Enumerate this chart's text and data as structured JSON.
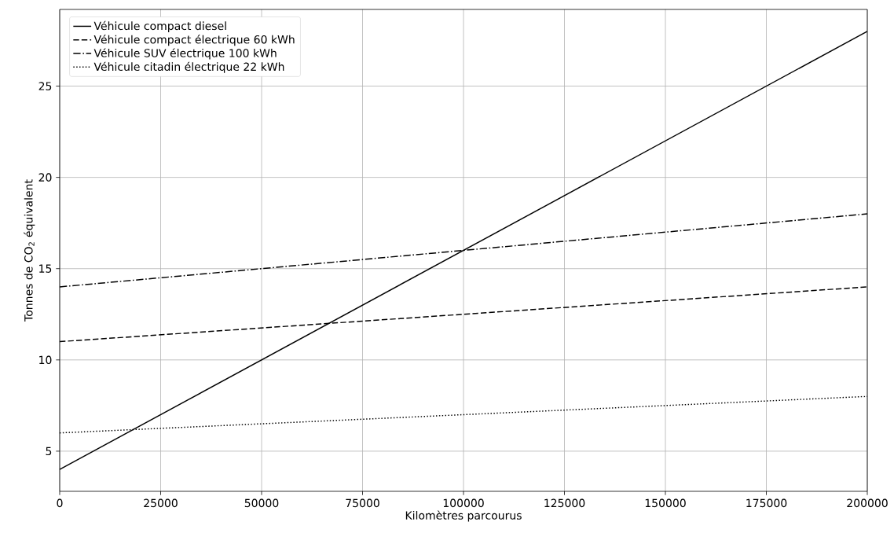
{
  "chart_data": {
    "type": "line",
    "xlabel": "Kilomètres parcourus",
    "ylabel": "Tonnes de CO$_{2}$ équivalent",
    "x": [
      0,
      200000
    ],
    "series": [
      {
        "name": "Véhicule compact diesel",
        "color": "#000000",
        "line_style": "solid",
        "values": [
          4,
          28
        ]
      },
      {
        "name": "Véhicule compact électrique 60 kWh",
        "color": "#000000",
        "line_style": "dashed",
        "values": [
          11,
          14
        ]
      },
      {
        "name": "Véhicule SUV électrique 100 kWh",
        "color": "#000000",
        "line_style": "dashdot",
        "values": [
          14,
          18
        ]
      },
      {
        "name": "Véhicule citadin électrique 22 kWh",
        "color": "#000000",
        "line_style": "dotted",
        "values": [
          6,
          8
        ]
      }
    ],
    "xlim": [
      0,
      200000
    ],
    "ylim": [
      2.8,
      29.2
    ],
    "xticks": [
      0,
      25000,
      50000,
      75000,
      100000,
      125000,
      150000,
      175000,
      200000
    ],
    "yticks": [
      5,
      10,
      15,
      20,
      25
    ],
    "grid": true,
    "legend": "top left",
    "marker": "none"
  }
}
